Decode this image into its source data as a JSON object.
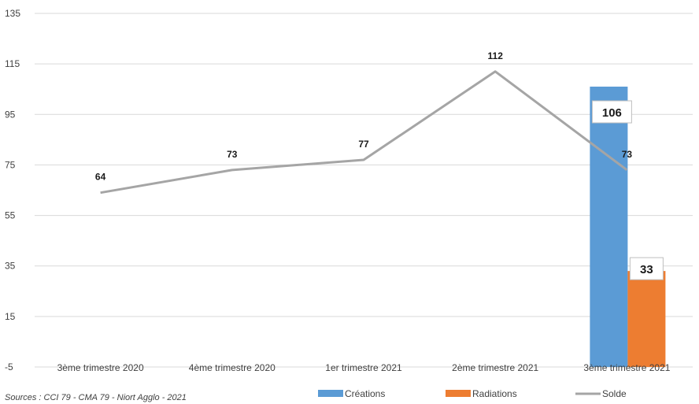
{
  "chart_data": {
    "type": "bar",
    "categories": [
      "3ème trimestre 2020",
      "4ème trimestre 2020",
      "1er trimestre 2021",
      "2ème trimestre 2021",
      "3ème trimestre 2021"
    ],
    "series": [
      {
        "name": "Créations",
        "kind": "bar",
        "color": "#5b9bd5",
        "values": [
          null,
          null,
          null,
          null,
          106
        ]
      },
      {
        "name": "Radiations",
        "kind": "bar",
        "color": "#ed7d31",
        "values": [
          null,
          null,
          null,
          null,
          33
        ]
      },
      {
        "name": "Solde",
        "kind": "line",
        "color": "#a5a5a5",
        "values": [
          64,
          73,
          77,
          112,
          73
        ]
      }
    ],
    "ylim": [
      -5,
      135
    ],
    "yticks": [
      135,
      115,
      95,
      75,
      55,
      35,
      15,
      -5
    ],
    "grid": true,
    "legend_position": "bottom",
    "source": "Sources : CCI 79 - CMA 79 - Niort Agglo - 2021"
  }
}
